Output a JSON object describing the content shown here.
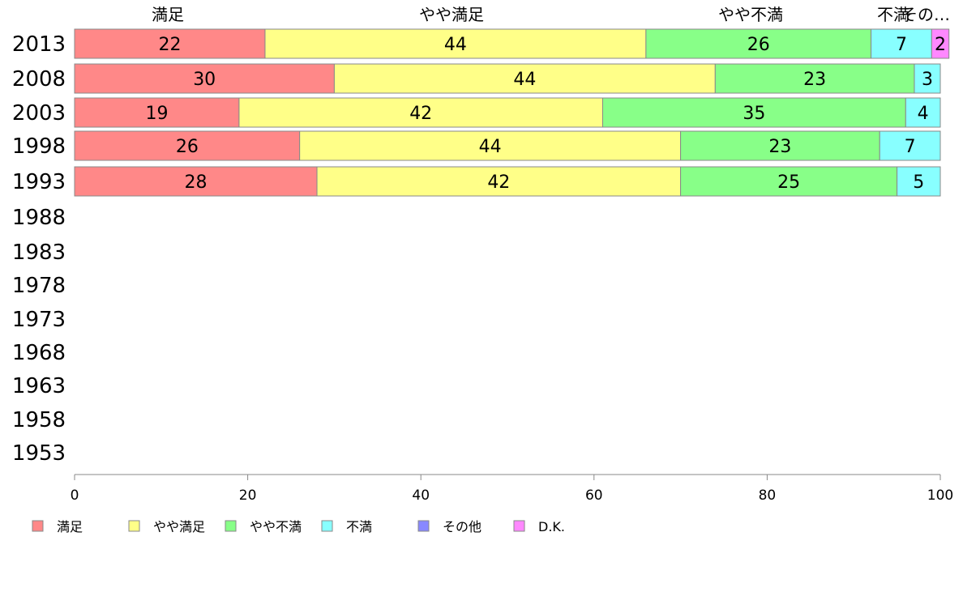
{
  "chart_data": {
    "type": "bar",
    "orientation": "horizontal",
    "stacked": true,
    "categories": [
      "2013",
      "2008",
      "2003",
      "1998",
      "1993",
      "1988",
      "1983",
      "1978",
      "1973",
      "1968",
      "1963",
      "1958",
      "1953"
    ],
    "series": [
      {
        "name": "満足",
        "color": "#ff8888",
        "values": [
          22,
          30,
          19,
          26,
          28,
          null,
          null,
          null,
          null,
          null,
          null,
          null,
          null
        ]
      },
      {
        "name": "やや満足",
        "color": "#ffff88",
        "values": [
          44,
          44,
          42,
          44,
          42,
          null,
          null,
          null,
          null,
          null,
          null,
          null,
          null
        ]
      },
      {
        "name": "やや不満",
        "color": "#88ff88",
        "values": [
          26,
          23,
          35,
          23,
          25,
          null,
          null,
          null,
          null,
          null,
          null,
          null,
          null
        ]
      },
      {
        "name": "不満",
        "color": "#88ffff",
        "values": [
          7,
          3,
          4,
          7,
          5,
          null,
          null,
          null,
          null,
          null,
          null,
          null,
          null
        ]
      },
      {
        "name": "その他",
        "color": "#8888ff",
        "values": [
          0,
          0,
          0,
          0,
          0,
          null,
          null,
          null,
          null,
          null,
          null,
          null,
          null
        ]
      },
      {
        "name": "D.K.",
        "color": "#ff88ff",
        "values": [
          2,
          0,
          0,
          0,
          0,
          null,
          null,
          null,
          null,
          null,
          null,
          null,
          null
        ]
      }
    ],
    "header_labels": [
      "満足",
      "やや満足",
      "やや不満",
      "不満",
      "その…"
    ],
    "xlim": [
      0,
      100
    ],
    "xticks": [
      0,
      20,
      40,
      60,
      80,
      100
    ],
    "legend_position": "bottom",
    "grid": false
  }
}
